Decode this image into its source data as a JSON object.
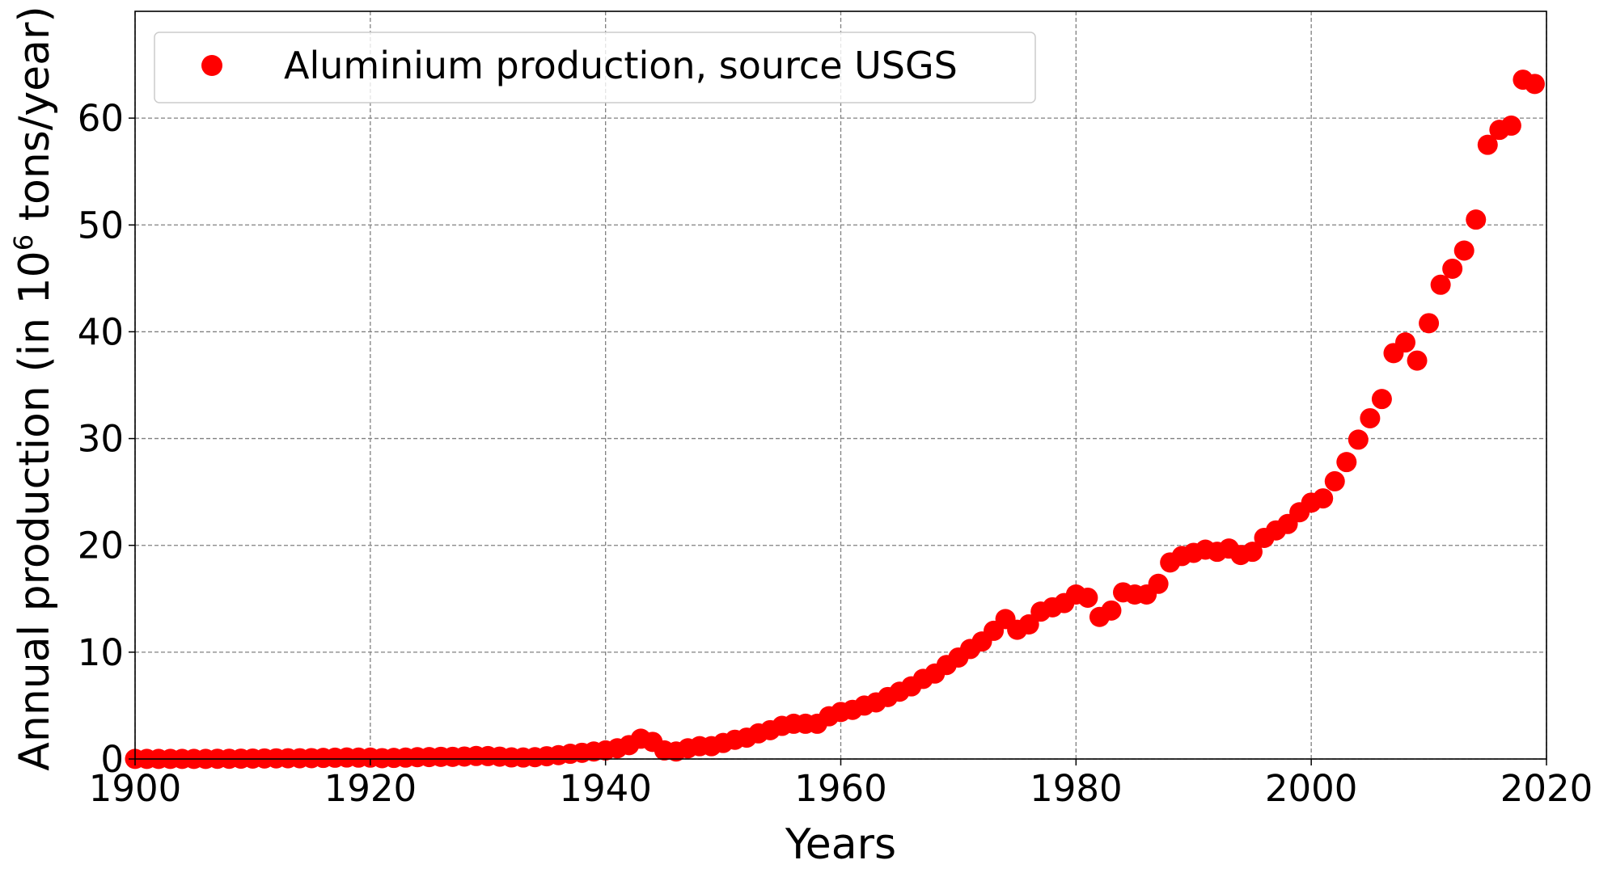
{
  "chart_data": {
    "type": "scatter",
    "title": "",
    "xlabel": "Years",
    "ylabel_main": "Annual production (in 10",
    "ylabel_sup": "6",
    "ylabel_end": " tons/year)",
    "xlim": [
      1900,
      2020
    ],
    "ylim": [
      0,
      70
    ],
    "x_ticks": [
      1900,
      1920,
      1940,
      1960,
      1980,
      2000,
      2020
    ],
    "y_ticks": [
      0,
      10,
      20,
      30,
      40,
      50,
      60
    ],
    "grid": true,
    "legend_position": "top-left",
    "series": [
      {
        "name": "Aluminium production, source USGS",
        "color": "#ff0000",
        "marker": "circle",
        "x": [
          1900,
          1901,
          1902,
          1903,
          1904,
          1905,
          1906,
          1907,
          1908,
          1909,
          1910,
          1911,
          1912,
          1913,
          1914,
          1915,
          1916,
          1917,
          1918,
          1919,
          1920,
          1921,
          1922,
          1923,
          1924,
          1925,
          1926,
          1927,
          1928,
          1929,
          1930,
          1931,
          1932,
          1933,
          1934,
          1935,
          1936,
          1937,
          1938,
          1939,
          1940,
          1941,
          1942,
          1943,
          1944,
          1945,
          1946,
          1947,
          1948,
          1949,
          1950,
          1951,
          1952,
          1953,
          1954,
          1955,
          1956,
          1957,
          1958,
          1959,
          1960,
          1961,
          1962,
          1963,
          1964,
          1965,
          1966,
          1967,
          1968,
          1969,
          1970,
          1971,
          1972,
          1973,
          1974,
          1975,
          1976,
          1977,
          1978,
          1979,
          1980,
          1981,
          1982,
          1983,
          1984,
          1985,
          1986,
          1987,
          1988,
          1989,
          1990,
          1991,
          1992,
          1993,
          1994,
          1995,
          1996,
          1997,
          1998,
          1999,
          2000,
          2001,
          2002,
          2003,
          2004,
          2005,
          2006,
          2007,
          2008,
          2009,
          2010,
          2011,
          2012,
          2013,
          2014,
          2015,
          2016,
          2017,
          2018,
          2019
        ],
        "values": [
          0.01,
          0.01,
          0.01,
          0.01,
          0.01,
          0.01,
          0.01,
          0.02,
          0.02,
          0.03,
          0.04,
          0.05,
          0.06,
          0.07,
          0.07,
          0.08,
          0.1,
          0.12,
          0.14,
          0.13,
          0.13,
          0.08,
          0.1,
          0.13,
          0.17,
          0.18,
          0.2,
          0.2,
          0.23,
          0.28,
          0.27,
          0.22,
          0.15,
          0.14,
          0.17,
          0.26,
          0.36,
          0.49,
          0.58,
          0.7,
          0.8,
          1.0,
          1.3,
          1.9,
          1.6,
          0.8,
          0.7,
          1.0,
          1.2,
          1.2,
          1.5,
          1.8,
          2.0,
          2.4,
          2.7,
          3.1,
          3.3,
          3.3,
          3.3,
          4.0,
          4.4,
          4.6,
          5.0,
          5.3,
          5.8,
          6.3,
          6.8,
          7.5,
          8.0,
          8.8,
          9.5,
          10.3,
          11.0,
          12.0,
          13.1,
          12.1,
          12.6,
          13.8,
          14.2,
          14.6,
          15.4,
          15.1,
          13.3,
          13.9,
          15.6,
          15.4,
          15.4,
          16.4,
          18.4,
          19.0,
          19.3,
          19.6,
          19.4,
          19.7,
          19.1,
          19.4,
          20.7,
          21.4,
          22.0,
          23.1,
          24.0,
          24.4,
          26.0,
          27.8,
          29.9,
          31.9,
          33.7,
          38.0,
          39.0,
          37.3,
          40.8,
          44.4,
          45.9,
          47.6,
          50.5,
          57.5,
          58.9,
          59.3,
          63.6,
          63.2
        ]
      }
    ]
  }
}
